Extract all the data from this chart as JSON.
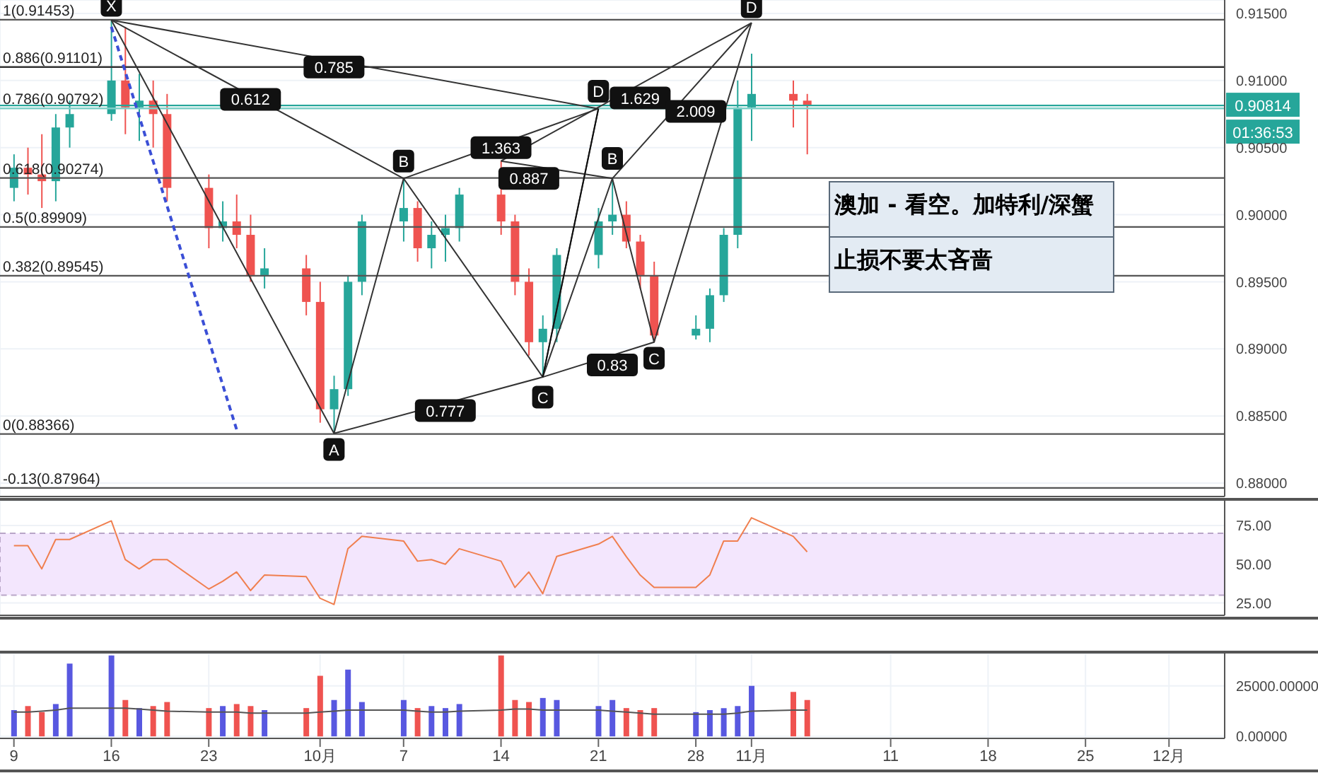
{
  "chart_data": [
    {
      "type": "candlestick",
      "tick_labels": "y",
      "grid": true,
      "x": [
        "--09-09",
        "--09-10",
        "--09-11",
        "--09-12",
        "--09-13",
        "--09-16",
        "--09-17",
        "--09-18",
        "--09-19",
        "--09-20",
        "--09-23",
        "--09-24",
        "--09-25",
        "--09-26",
        "--09-27",
        "--09-30",
        "--10-01",
        "--10-02",
        "--10-03",
        "--10-04",
        "--10-07",
        "--10-08",
        "--10-09",
        "--10-10",
        "--10-11",
        "--10-14",
        "--10-15",
        "--10-16",
        "--10-17",
        "--10-18",
        "--10-21",
        "--10-22",
        "--10-23",
        "--10-24",
        "--10-25",
        "--10-28",
        "--10-29",
        "--10-30",
        "--10-31",
        "--11-01",
        "--11-04",
        "--11-05"
      ],
      "ohlc": [
        [
          0.902,
          0.9045,
          0.901,
          0.9035
        ],
        [
          0.9035,
          0.905,
          0.9015,
          0.903
        ],
        [
          0.903,
          0.906,
          0.9005,
          0.9025
        ],
        [
          0.9025,
          0.9075,
          0.901,
          0.9065
        ],
        [
          0.9065,
          0.9085,
          0.905,
          0.9075
        ],
        [
          0.9075,
          0.91453,
          0.907,
          0.91
        ],
        [
          0.91,
          0.914,
          0.906,
          0.908
        ],
        [
          0.908,
          0.9105,
          0.9055,
          0.9085
        ],
        [
          0.9085,
          0.91,
          0.905,
          0.9075
        ],
        [
          0.9075,
          0.909,
          0.901,
          0.902
        ],
        [
          0.902,
          0.903,
          0.8975,
          0.899
        ],
        [
          0.899,
          0.901,
          0.898,
          0.8995
        ],
        [
          0.8995,
          0.9015,
          0.8975,
          0.8985
        ],
        [
          0.8985,
          0.9,
          0.895,
          0.8955
        ],
        [
          0.8955,
          0.8975,
          0.8945,
          0.896
        ],
        [
          0.896,
          0.897,
          0.8925,
          0.8935
        ],
        [
          0.8935,
          0.895,
          0.8845,
          0.8855
        ],
        [
          0.8855,
          0.888,
          0.88366,
          0.887
        ],
        [
          0.887,
          0.8955,
          0.8865,
          0.895
        ],
        [
          0.895,
          0.9,
          0.894,
          0.8995
        ],
        [
          0.8995,
          0.90274,
          0.898,
          0.9005
        ],
        [
          0.9005,
          0.901,
          0.8965,
          0.8975
        ],
        [
          0.8975,
          0.8995,
          0.896,
          0.8985
        ],
        [
          0.8985,
          0.9,
          0.8965,
          0.899
        ],
        [
          0.899,
          0.902,
          0.898,
          0.9015
        ],
        [
          0.9015,
          0.904,
          0.8985,
          0.8995
        ],
        [
          0.8995,
          0.9,
          0.894,
          0.895
        ],
        [
          0.895,
          0.896,
          0.8895,
          0.8905
        ],
        [
          0.8905,
          0.8925,
          0.8879,
          0.8915
        ],
        [
          0.8915,
          0.8975,
          0.8905,
          0.897
        ],
        [
          0.897,
          0.9005,
          0.896,
          0.8995
        ],
        [
          0.8995,
          0.9027,
          0.8985,
          0.9
        ],
        [
          0.9,
          0.901,
          0.8975,
          0.898
        ],
        [
          0.898,
          0.8985,
          0.8945,
          0.8955
        ],
        [
          0.8955,
          0.8965,
          0.8905,
          0.891
        ],
        [
          0.891,
          0.8925,
          0.8907,
          0.8915
        ],
        [
          0.8915,
          0.8945,
          0.8905,
          0.894
        ],
        [
          0.894,
          0.899,
          0.8935,
          0.8985
        ],
        [
          0.8985,
          0.91,
          0.8975,
          0.908
        ],
        [
          0.908,
          0.912,
          0.9055,
          0.909
        ],
        [
          0.909,
          0.91,
          0.9065,
          0.9085
        ],
        [
          0.9085,
          0.909,
          0.9045,
          0.90814
        ]
      ],
      "series": [
        {
          "type": "line",
          "color": "#333333",
          "x": [
            "--09-16",
            "--10-02",
            "--10-07",
            "--10-17",
            "--10-21"
          ],
          "values": [
            0.9145,
            0.8837,
            0.9027,
            0.8879,
            0.9079
          ]
        },
        {
          "type": "line",
          "color": "#333333",
          "x": [
            "--09-16",
            "--10-21"
          ],
          "values": [
            0.9145,
            0.9079
          ]
        },
        {
          "type": "line",
          "color": "#333333",
          "x": [
            "--09-16",
            "--10-07"
          ],
          "values": [
            0.9145,
            0.9027
          ]
        },
        {
          "type": "line",
          "color": "#333333",
          "x": [
            "--10-02",
            "--10-17",
            "--10-25"
          ],
          "values": [
            0.8837,
            0.8879,
            0.8905
          ]
        },
        {
          "type": "line",
          "color": "#333333",
          "x": [
            "--10-07",
            "--10-21"
          ],
          "values": [
            0.9027,
            0.9079
          ]
        },
        {
          "type": "line",
          "color": "#333333",
          "x": [
            "--10-14",
            "--10-22"
          ],
          "values": [
            0.904,
            0.9027
          ]
        },
        {
          "type": "line",
          "color": "#333333",
          "x": [
            "--10-17",
            "--10-22",
            "--10-25",
            "--11-01"
          ],
          "values": [
            0.8879,
            0.9027,
            0.8905,
            0.9143
          ]
        },
        {
          "type": "line",
          "color": "#333333",
          "x": [
            "--10-22",
            "--11-01"
          ],
          "values": [
            0.9027,
            0.9143
          ]
        },
        {
          "type": "line",
          "color": "#333333",
          "x": [
            "--10-14",
            "--11-01"
          ],
          "values": [
            0.904,
            0.9143
          ]
        },
        {
          "type": "line",
          "color": "#111111",
          "x": [
            "--10-17",
            "--10-21"
          ],
          "values": [
            0.8879,
            0.9079
          ]
        },
        {
          "type": "line",
          "color": "#3b4fd6",
          "line_style": "dashed",
          "x": [
            "--09-16",
            "--09-25"
          ],
          "values": [
            0.914,
            0.884
          ]
        }
      ],
      "xlim": [
        "--09-08",
        "--12-05"
      ],
      "xticks": [
        {
          "value": "--09-09",
          "label": null
        },
        {
          "value": "--09-16",
          "label": null
        },
        {
          "value": "--09-23",
          "label": null
        },
        {
          "value": "--10-01",
          "label": null
        },
        {
          "value": "--10-07",
          "label": null
        },
        {
          "value": "--10-14",
          "label": null
        },
        {
          "value": "--10-21",
          "label": null
        },
        {
          "value": "--10-28",
          "label": null
        },
        {
          "value": "--11-01",
          "label": null
        },
        {
          "value": "--11-11",
          "label": null
        },
        {
          "value": "--11-18",
          "label": null
        },
        {
          "value": "--11-25",
          "label": null
        },
        {
          "value": "--12-01",
          "label": null
        }
      ],
      "ylim": [
        0.879,
        0.916
      ],
      "yticks": [
        {
          "value": 0.88,
          "label": "0.88000"
        },
        {
          "value": 0.885,
          "label": "0.88500"
        },
        {
          "value": 0.89,
          "label": "0.89000"
        },
        {
          "value": 0.895,
          "label": "0.89500"
        },
        {
          "value": 0.9,
          "label": "0.90000"
        },
        {
          "value": 0.905,
          "label": "0.90500"
        },
        {
          "value": 0.91,
          "label": "0.91000"
        },
        {
          "value": 0.915,
          "label": "0.91500"
        }
      ],
      "ref_lines": [
        {
          "axis": "y",
          "value": 0.91453,
          "label": "1(0.91453)",
          "color": "#555555"
        },
        {
          "axis": "y",
          "value": 0.91101,
          "label": "0.886(0.91101)",
          "color": "#333333"
        },
        {
          "axis": "y",
          "value": 0.90792,
          "label": "0.786(0.90792)",
          "color": "#7fcfc8"
        },
        {
          "axis": "y",
          "value": 0.90274,
          "label": "0.618(0.90274)",
          "color": "#555555"
        },
        {
          "axis": "y",
          "value": 0.89909,
          "label": "0.5(0.89909)",
          "color": "#555555"
        },
        {
          "axis": "y",
          "value": 0.89545,
          "label": "0.382(0.89545)",
          "color": "#555555"
        },
        {
          "axis": "y",
          "value": 0.88366,
          "label": "0(0.88366)",
          "color": "#555555"
        },
        {
          "axis": "y",
          "value": 0.87964,
          "label": "-0.13(0.87964)",
          "color": "#555555"
        },
        {
          "axis": "y",
          "value": 0.90814,
          "label": "0.90814",
          "color": "#26a69a"
        }
      ],
      "annotations": [
        {
          "text": "X",
          "x": "--09-16",
          "y": 0.9156
        },
        {
          "text": "A",
          "x": "--10-02",
          "y": 0.8825
        },
        {
          "text": "B",
          "x": "--10-07",
          "y": 0.904
        },
        {
          "text": "C",
          "x": "--10-17",
          "y": 0.8864
        },
        {
          "text": "D",
          "x": "--10-21",
          "y": 0.9092
        },
        {
          "text": "B",
          "x": "--10-22",
          "y": 0.9042
        },
        {
          "text": "C",
          "x": "--10-25",
          "y": 0.8893
        },
        {
          "text": "D",
          "x": "--11-01",
          "y": 0.9155
        },
        {
          "text": "0.785",
          "x": "--10-02",
          "y": 0.911
        },
        {
          "text": "0.612",
          "x": "--09-26",
          "y": 0.9086
        },
        {
          "text": "0.777",
          "x": "--10-10",
          "y": 0.8854
        },
        {
          "text": "1.363",
          "x": "--10-14",
          "y": 0.905
        },
        {
          "text": "0.887",
          "x": "--10-16",
          "y": 0.9027
        },
        {
          "text": "1.629",
          "x": "--10-24",
          "y": 0.9087
        },
        {
          "text": "2.009",
          "x": "--10-28",
          "y": 0.9077
        },
        {
          "text": "0.83",
          "x": "--10-22",
          "y": 0.8888
        },
        "澳加 -  看空。加特利/深蟹",
        "止损不要太吝啬",
        "01:36:53"
      ]
    },
    {
      "type": "line",
      "tick_labels": "y",
      "grid": true,
      "color": "#f07f4f",
      "x": [
        "--09-09",
        "--09-10",
        "--09-11",
        "--09-12",
        "--09-13",
        "--09-16",
        "--09-17",
        "--09-18",
        "--09-19",
        "--09-20",
        "--09-23",
        "--09-24",
        "--09-25",
        "--09-26",
        "--09-27",
        "--09-30",
        "--10-01",
        "--10-02",
        "--10-03",
        "--10-04",
        "--10-07",
        "--10-08",
        "--10-09",
        "--10-10",
        "--10-11",
        "--10-14",
        "--10-15",
        "--10-16",
        "--10-17",
        "--10-18",
        "--10-21",
        "--10-22",
        "--10-23",
        "--10-24",
        "--10-25",
        "--10-28",
        "--10-29",
        "--10-30",
        "--10-31",
        "--11-01",
        "--11-04",
        "--11-05"
      ],
      "values": [
        62,
        62,
        47,
        66,
        66,
        78,
        53,
        47,
        53,
        53,
        34,
        39,
        45,
        33,
        43,
        42,
        28,
        24,
        60,
        68,
        65,
        52,
        53,
        50,
        60,
        52,
        35,
        45,
        31,
        55,
        63,
        68,
        55,
        43,
        35,
        35,
        43,
        65,
        65,
        80,
        68,
        58
      ],
      "xlim": [
        "--09-08",
        "--12-05"
      ],
      "xticks": [
        {
          "value": "--09-09",
          "label": null
        },
        {
          "value": "--09-16",
          "label": null
        },
        {
          "value": "--09-23",
          "label": null
        },
        {
          "value": "--10-01",
          "label": null
        },
        {
          "value": "--10-07",
          "label": null
        },
        {
          "value": "--10-14",
          "label": null
        },
        {
          "value": "--10-21",
          "label": null
        },
        {
          "value": "--10-28",
          "label": null
        },
        {
          "value": "--11-01",
          "label": null
        },
        {
          "value": "--11-11",
          "label": null
        },
        {
          "value": "--11-18",
          "label": null
        },
        {
          "value": "--11-25",
          "label": null
        },
        {
          "value": "--12-01",
          "label": null
        }
      ],
      "ylim": [
        17,
        91
      ],
      "yticks": [
        {
          "value": 25,
          "label": "25.00"
        },
        {
          "value": 50,
          "label": "50.00"
        },
        {
          "value": 75,
          "label": "75.00"
        }
      ],
      "bands": [
        {
          "axis": "y",
          "from": 30,
          "to": 70,
          "color": "#f3e6fd"
        }
      ]
    },
    {
      "type": "bar",
      "grid": true,
      "x": [
        "--09-09",
        "--09-10",
        "--09-11",
        "--09-12",
        "--09-13",
        "--09-16",
        "--09-17",
        "--09-18",
        "--09-19",
        "--09-20",
        "--09-23",
        "--09-24",
        "--09-25",
        "--09-26",
        "--09-27",
        "--09-30",
        "--10-01",
        "--10-02",
        "--10-03",
        "--10-04",
        "--10-07",
        "--10-08",
        "--10-09",
        "--10-10",
        "--10-11",
        "--10-14",
        "--10-15",
        "--10-16",
        "--10-17",
        "--10-18",
        "--10-21",
        "--10-22",
        "--10-23",
        "--10-24",
        "--10-25",
        "--10-28",
        "--10-29",
        "--10-30",
        "--10-31",
        "--11-01",
        "--11-04",
        "--11-05"
      ],
      "series": [
        {
          "type": "bar",
          "values": [
            13000,
            15000,
            12000,
            16000,
            36000,
            40000,
            18000,
            14000,
            15000,
            17000,
            14000,
            15000,
            16000,
            15000,
            13000,
            14000,
            30000,
            18000,
            33000,
            17000,
            18000,
            14000,
            15000,
            14000,
            16000,
            40000,
            18000,
            17000,
            19000,
            18000,
            15000,
            18000,
            14000,
            13000,
            14000,
            12000,
            13000,
            14000,
            15000,
            25000,
            22000,
            18000
          ],
          "colors": [
            "#5858e0",
            "#ef5350",
            "#ef5350",
            "#5858e0",
            "#5858e0",
            "#5858e0",
            "#ef5350",
            "#5858e0",
            "#ef5350",
            "#ef5350",
            "#ef5350",
            "#5858e0",
            "#ef5350",
            "#ef5350",
            "#5858e0",
            "#ef5350",
            "#ef5350",
            "#5858e0",
            "#5858e0",
            "#5858e0",
            "#5858e0",
            "#ef5350",
            "#5858e0",
            "#5858e0",
            "#5858e0",
            "#ef5350",
            "#ef5350",
            "#ef5350",
            "#5858e0",
            "#5858e0",
            "#5858e0",
            "#5858e0",
            "#ef5350",
            "#ef5350",
            "#ef5350",
            "#5858e0",
            "#5858e0",
            "#5858e0",
            "#5858e0",
            "#5858e0",
            "#ef5350",
            "#ef5350"
          ]
        },
        {
          "type": "line",
          "color": "#555555",
          "values": [
            12000,
            12000,
            12500,
            13000,
            14000,
            14000,
            14000,
            13500,
            13000,
            12500,
            12000,
            12000,
            12000,
            11500,
            11500,
            11500,
            12000,
            12500,
            13000,
            13000,
            13000,
            12500,
            12000,
            12000,
            12500,
            13000,
            13500,
            13500,
            13000,
            13000,
            13000,
            12500,
            12000,
            11500,
            11000,
            11000,
            11000,
            11000,
            11500,
            12500,
            13000,
            13000
          ]
        }
      ],
      "xlim": [
        "--09-08",
        "--12-05"
      ],
      "xticks": [
        {
          "value": "--09-09",
          "label": "9"
        },
        {
          "value": "--09-16",
          "label": "16"
        },
        {
          "value": "--09-23",
          "label": "23"
        },
        {
          "value": "--10-01",
          "label": "10月"
        },
        {
          "value": "--10-07",
          "label": "7"
        },
        {
          "value": "--10-14",
          "label": "14"
        },
        {
          "value": "--10-21",
          "label": "21"
        },
        {
          "value": "--10-28",
          "label": "28"
        },
        {
          "value": "--11-01",
          "label": "11月"
        },
        {
          "value": "--11-11",
          "label": "11"
        },
        {
          "value": "--11-18",
          "label": "18"
        },
        {
          "value": "--11-25",
          "label": "25"
        },
        {
          "value": "--12-01",
          "label": "12月"
        }
      ],
      "ylim": [
        -1000,
        41000
      ],
      "yticks": [
        {
          "value": 0,
          "label": "0.00000"
        },
        {
          "value": 25000,
          "label": "25000.00000"
        }
      ]
    }
  ]
}
